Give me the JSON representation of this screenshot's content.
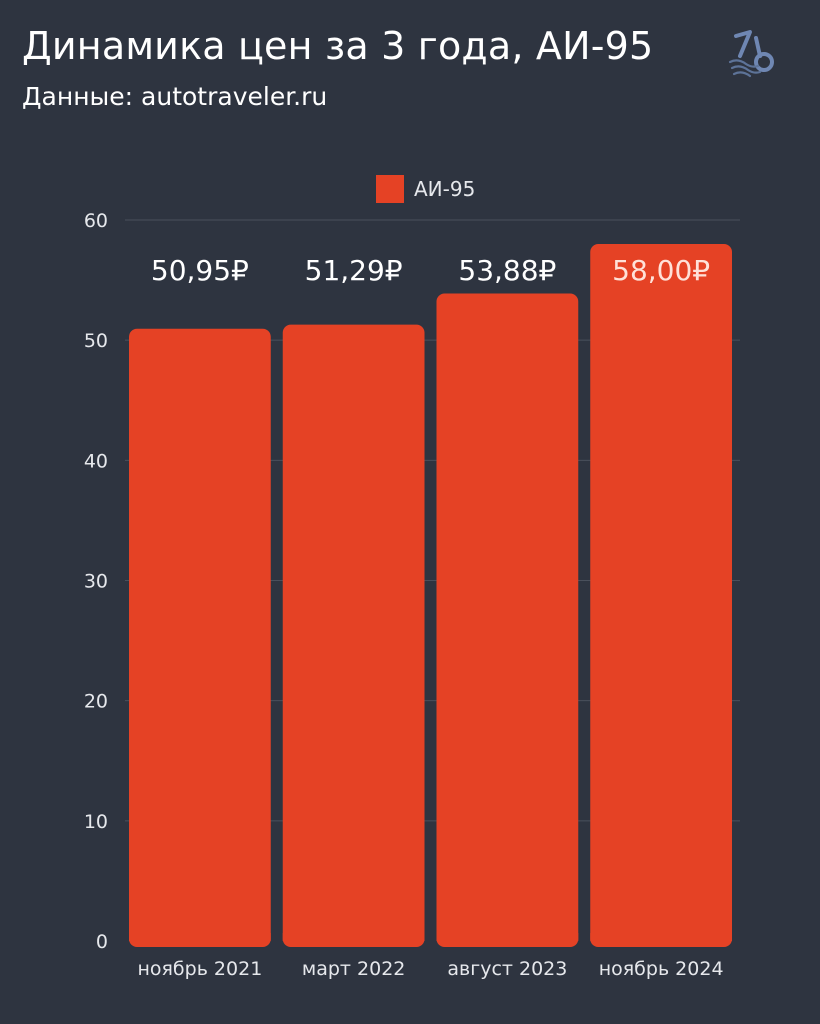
{
  "header": {
    "title": "Динамика цен за 3 года, АИ-95",
    "subtitle": "Данные: autotraveler.ru"
  },
  "logo": {
    "icon": "lb-wave-logo-icon"
  },
  "colors": {
    "background": "#2e3440",
    "bar": "#e54225",
    "grid": "#4a505c",
    "axis_text": "#e6e8ec",
    "label_default": "#ffffff",
    "label_highlight": "#ffe1d8"
  },
  "chart_data": {
    "type": "bar",
    "categories": [
      "ноябрь 2021",
      "март 2022",
      "август 2023",
      "ноябрь 2024"
    ],
    "series": [
      {
        "name": "АИ-95",
        "values": [
          50.95,
          51.29,
          53.88,
          58.0
        ]
      }
    ],
    "data_labels": [
      "50,95₽",
      "51,29₽",
      "53,88₽",
      "58,00₽"
    ],
    "highlight_index": 3,
    "ylim": [
      0,
      60
    ],
    "yticks": [
      0,
      10,
      20,
      30,
      40,
      50,
      60
    ],
    "grid": true,
    "legend": "top-center"
  }
}
